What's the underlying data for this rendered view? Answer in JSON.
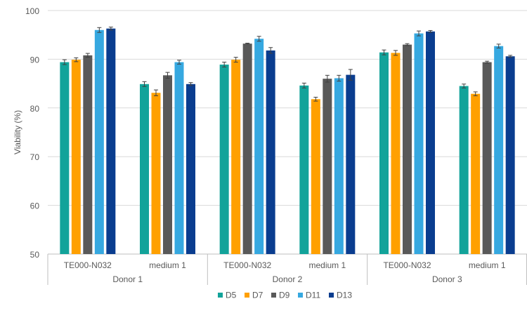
{
  "chart_data": {
    "type": "bar",
    "title": "",
    "xlabel": "",
    "ylabel": "Viability (%)",
    "ylim": [
      50,
      100
    ],
    "yticks": [
      "50",
      "60",
      "70",
      "80",
      "90",
      "100"
    ],
    "grid": true,
    "legend_position": "bottom",
    "groups": [
      {
        "donor": "Donor 1",
        "conditions": [
          "TE000-N032",
          "medium 1"
        ]
      },
      {
        "donor": "Donor 2",
        "conditions": [
          "TE000-N032",
          "medium 1"
        ]
      },
      {
        "donor": "Donor 3",
        "conditions": [
          "TE000-N032",
          "medium 1"
        ]
      }
    ],
    "categories": [
      "Donor 1 / TE000-N032",
      "Donor 1 / medium 1",
      "Donor 2 / TE000-N032",
      "Donor 2 / medium 1",
      "Donor 3 / TE000-N032",
      "Donor 3 / medium 1"
    ],
    "series": [
      {
        "name": "D5",
        "color": "#12A39A",
        "values": [
          89.4,
          84.9,
          88.9,
          84.6,
          91.4,
          84.5
        ],
        "errors": [
          0.5,
          0.5,
          0.5,
          0.5,
          0.5,
          0.4
        ]
      },
      {
        "name": "D7",
        "color": "#FFA000",
        "values": [
          89.9,
          83.1,
          89.9,
          81.8,
          91.3,
          82.9
        ],
        "errors": [
          0.4,
          0.6,
          0.5,
          0.4,
          0.5,
          0.4
        ]
      },
      {
        "name": "D9",
        "color": "#595959",
        "values": [
          90.8,
          86.7,
          93.2,
          86.0,
          93.0,
          89.4
        ],
        "errors": [
          0.4,
          0.6,
          0.1,
          0.7,
          0.2,
          0.2
        ]
      },
      {
        "name": "D11",
        "color": "#36A8E0",
        "values": [
          96.0,
          89.4,
          94.2,
          86.1,
          95.3,
          92.7
        ],
        "errors": [
          0.5,
          0.4,
          0.5,
          0.6,
          0.5,
          0.4
        ]
      },
      {
        "name": "D13",
        "color": "#0A3D8F",
        "values": [
          96.3,
          84.9,
          91.8,
          86.8,
          95.7,
          90.6
        ],
        "errors": [
          0.3,
          0.3,
          0.6,
          1.1,
          0.2,
          0.2
        ]
      }
    ]
  }
}
